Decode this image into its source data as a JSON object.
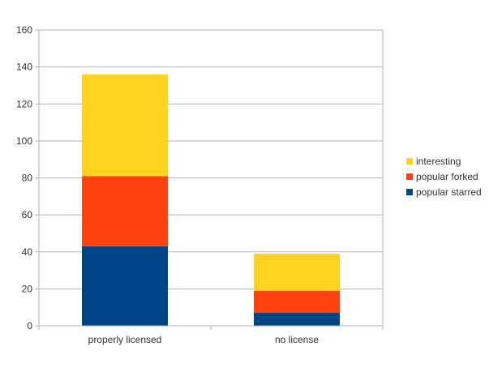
{
  "chart_data": {
    "type": "bar",
    "stacked": true,
    "title": "",
    "xlabel": "",
    "ylabel": "",
    "categories": [
      "properly licensed",
      "no license"
    ],
    "series": [
      {
        "name": "popular starred",
        "values": [
          43,
          7
        ],
        "color": "#004586"
      },
      {
        "name": "popular forked",
        "values": [
          38,
          12
        ],
        "color": "#ff420e"
      },
      {
        "name": "interesting",
        "values": [
          55,
          20
        ],
        "color": "#ffd320"
      }
    ],
    "ylim": [
      0,
      160
    ],
    "yticks": [
      0,
      20,
      40,
      60,
      80,
      100,
      120,
      140,
      160
    ],
    "grid": true,
    "legend": "right"
  }
}
